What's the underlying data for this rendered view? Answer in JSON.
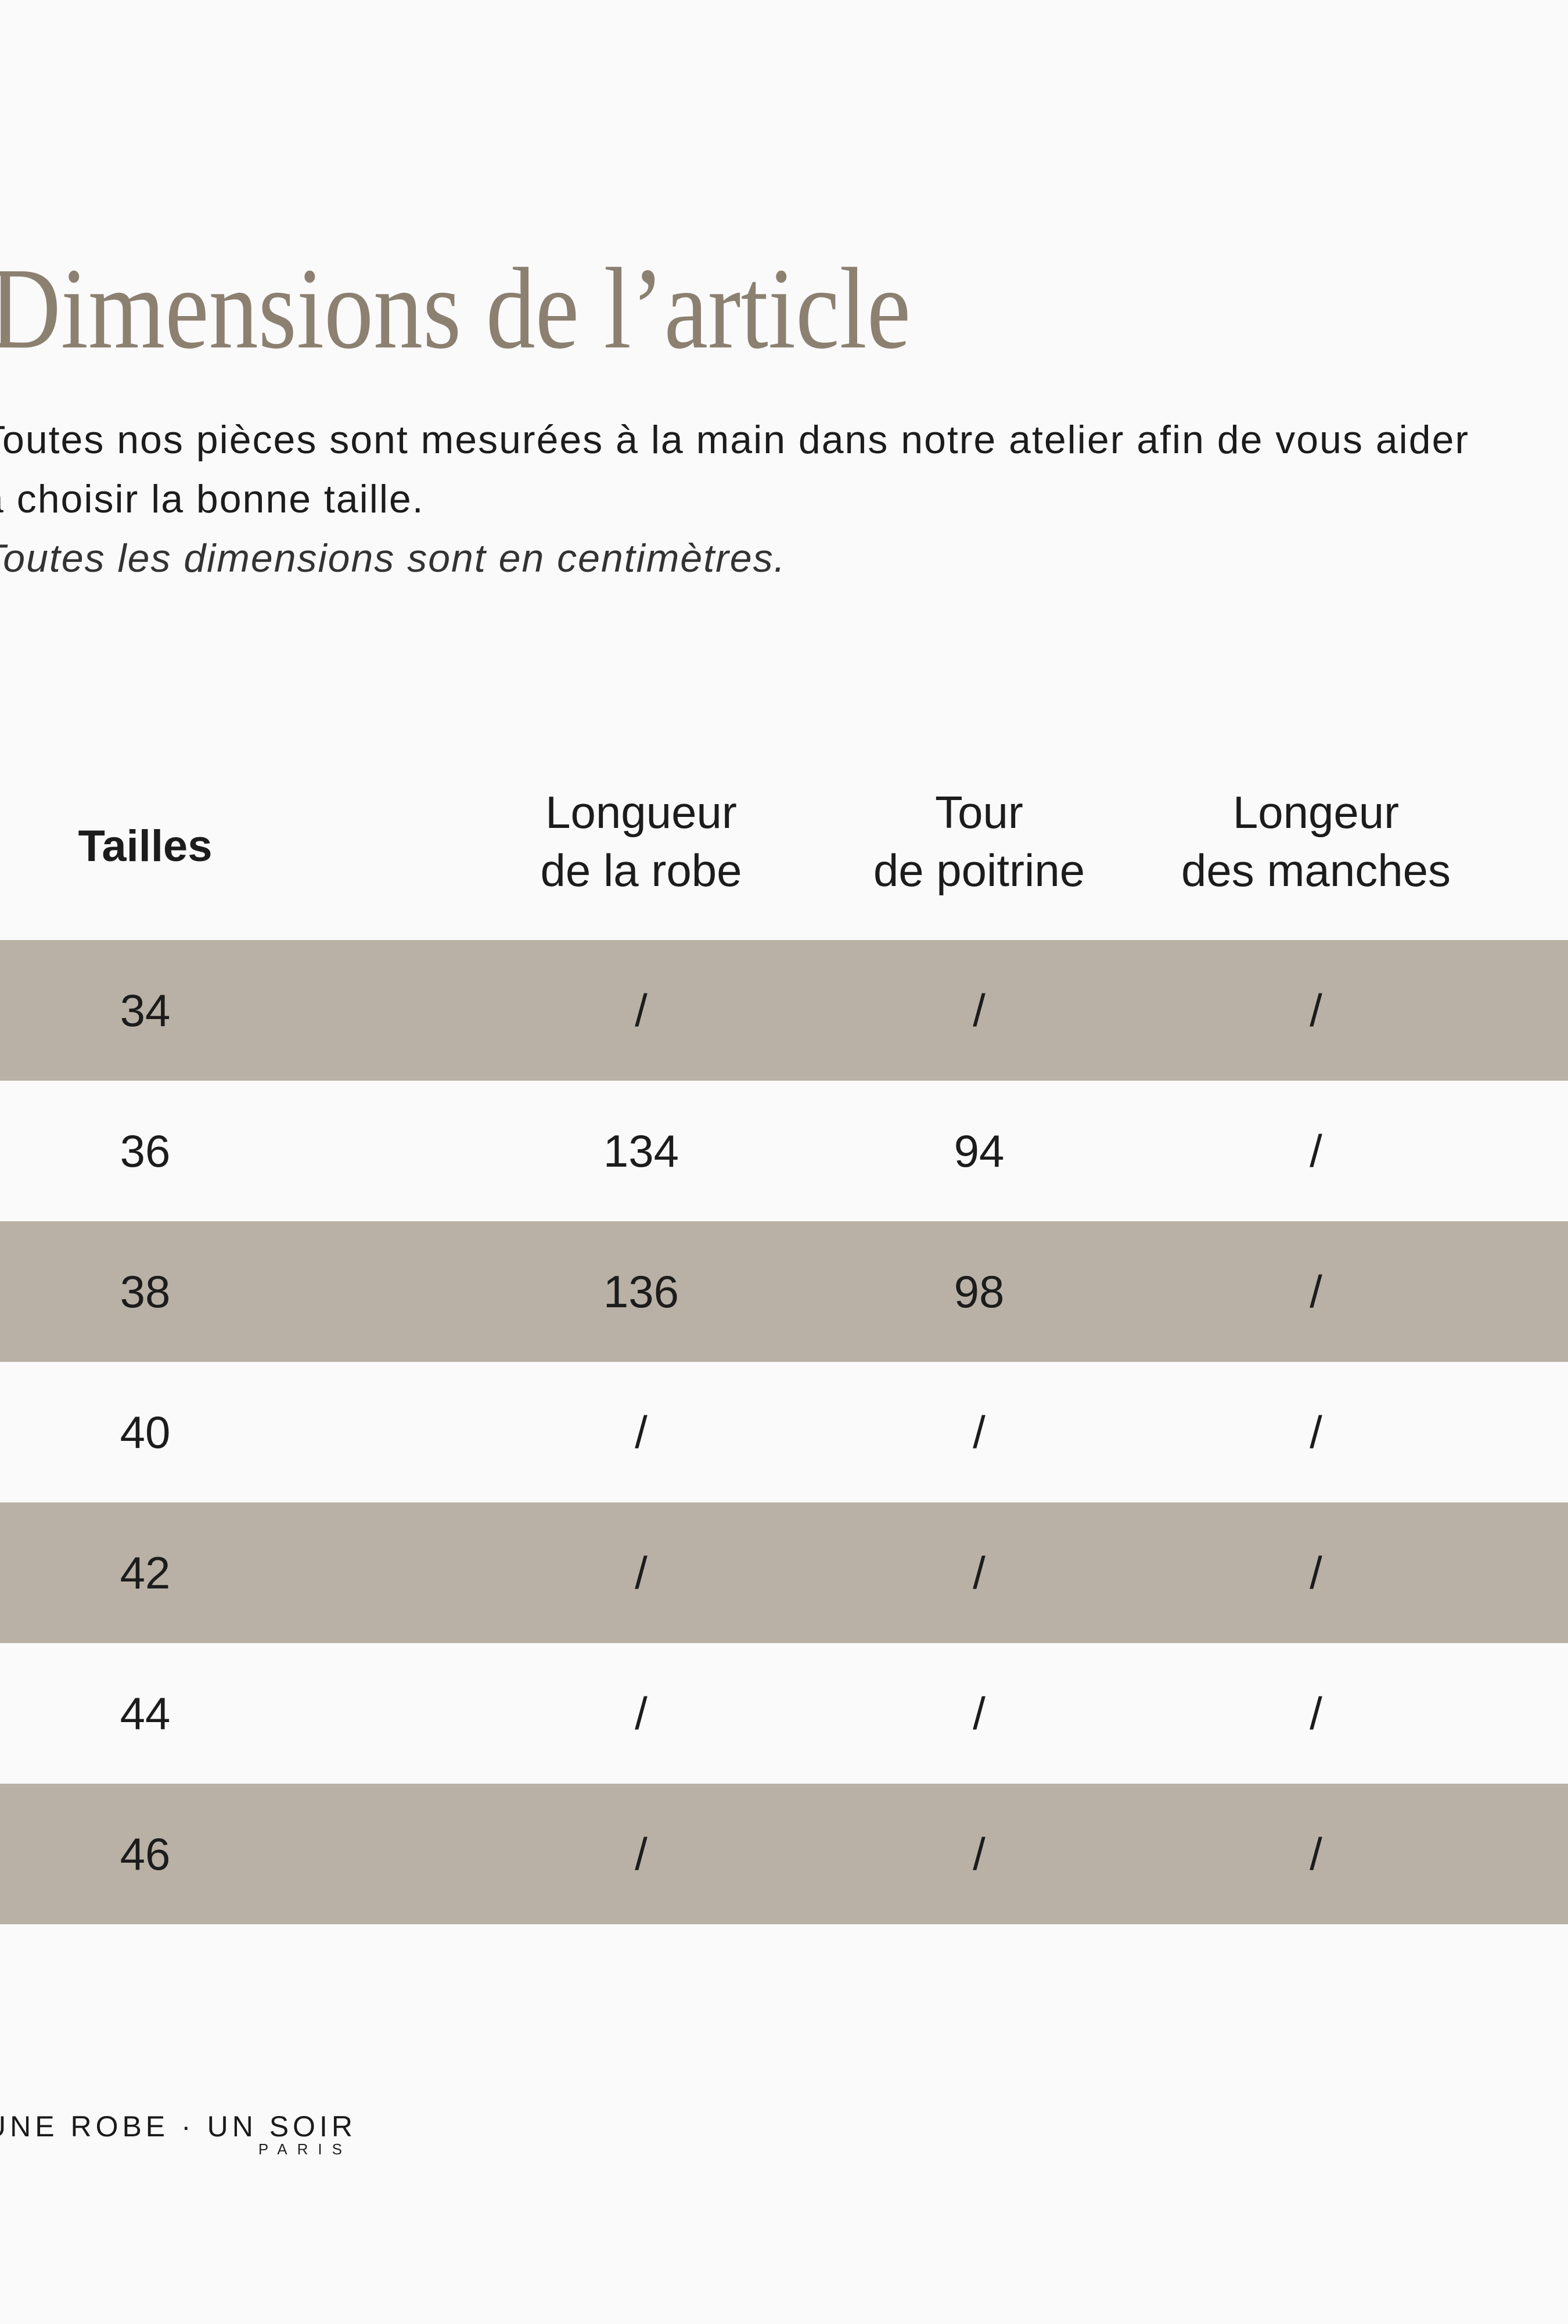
{
  "title": "Dimensions de l’article",
  "intro": {
    "line1": "Toutes nos pièces sont mesurées à la main dans notre atelier afin de vous aider",
    "line2": "à choisir la bonne taille.",
    "note": "Toutes les dimensions sont en centimètres."
  },
  "table": {
    "size_header": "Tailles",
    "columns": [
      {
        "line1": "Longueur",
        "line2": "de la robe"
      },
      {
        "line1": "Tour",
        "line2": "de poitrine"
      },
      {
        "line1": "Longeur",
        "line2": "des manches"
      }
    ],
    "rows": [
      {
        "size": "34",
        "length": "/",
        "bust": "/",
        "sleeve": "/"
      },
      {
        "size": "36",
        "length": "134",
        "bust": "94",
        "sleeve": "/"
      },
      {
        "size": "38",
        "length": "136",
        "bust": "98",
        "sleeve": "/"
      },
      {
        "size": "40",
        "length": "/",
        "bust": "/",
        "sleeve": "/"
      },
      {
        "size": "42",
        "length": "/",
        "bust": "/",
        "sleeve": "/"
      },
      {
        "size": "44",
        "length": "/",
        "bust": "/",
        "sleeve": "/"
      },
      {
        "size": "46",
        "length": "/",
        "bust": "/",
        "sleeve": "/"
      }
    ]
  },
  "footer": {
    "brand": "UNE ROBE · UN SOIR",
    "city": "PARIS"
  },
  "colors": {
    "background": "#fafafa",
    "row_shade": "#b9b1a5",
    "title": "#8c8071",
    "text": "#1c1c1c",
    "note": "#333333"
  }
}
